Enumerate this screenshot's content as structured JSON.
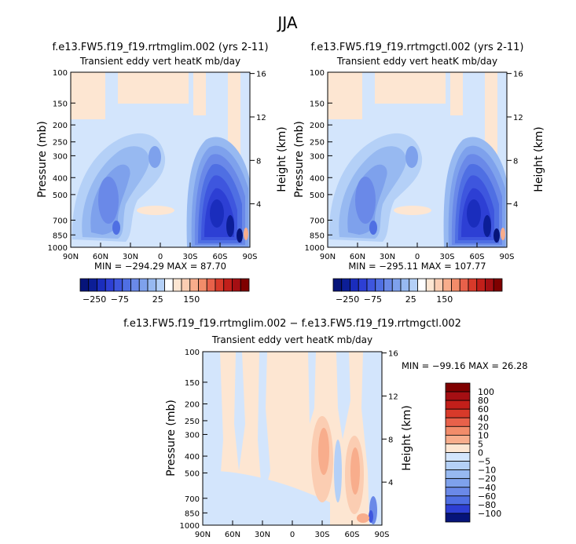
{
  "figure": {
    "title": "JJA"
  },
  "colors": {
    "bg": "#d3e5fc",
    "pos": [
      "#fde6d2",
      "#fbcdb2",
      "#f8ad8c",
      "#f28c6a",
      "#e8614a",
      "#d83a2a",
      "#c21f1a",
      "#a50f13",
      "#7f0000"
    ],
    "neg": [
      "#d3e5fc",
      "#b4d0f7",
      "#97b9f1",
      "#7ea1ec",
      "#6a89e8",
      "#4f6fe3",
      "#3e56de",
      "#2d3fd4",
      "#1a2dbd",
      "#0c1e97",
      "#06147a"
    ]
  },
  "chart_data": [
    {
      "type": "heatmap",
      "name": "panel-left",
      "title": "f.e13.FW5.f19_f19.rrtmglim.002 (yrs 2-11)",
      "subtitle": "Transient eddy vert heatK mb/day",
      "xlabel": "",
      "ylabel": "Pressure (mb)",
      "y2label": "Height (km)",
      "xticks": [
        "90N",
        "60N",
        "30N",
        "0",
        "30S",
        "60S",
        "90S"
      ],
      "yticks": [
        "100",
        "150",
        "200",
        "250",
        "300",
        "400",
        "500",
        "700",
        "850",
        "1000"
      ],
      "y2ticks": [
        "16",
        "12",
        "8",
        "4"
      ],
      "xlim": [
        90,
        -90
      ],
      "ylim": [
        100,
        1000
      ],
      "y_scale": "log",
      "stats": "MIN = −294.29   MAX =  87.70",
      "min": -294.29,
      "max": 87.7,
      "colorbar_labels": [
        "−250",
        "−75",
        "25",
        "150"
      ]
    },
    {
      "type": "heatmap",
      "name": "panel-right",
      "title": "f.e13.FW5.f19_f19.rrtmgctl.002 (yrs 2-11)",
      "subtitle": "Transient eddy vert heatK mb/day",
      "xlabel": "",
      "ylabel": "Pressure (mb)",
      "y2label": "Height (km)",
      "xticks": [
        "90N",
        "60N",
        "30N",
        "0",
        "30S",
        "60S",
        "90S"
      ],
      "yticks": [
        "100",
        "150",
        "200",
        "250",
        "300",
        "400",
        "500",
        "700",
        "850",
        "1000"
      ],
      "y2ticks": [
        "16",
        "12",
        "8",
        "4"
      ],
      "xlim": [
        90,
        -90
      ],
      "ylim": [
        100,
        1000
      ],
      "y_scale": "log",
      "stats": "MIN = −295.11   MAX = 107.77",
      "min": -295.11,
      "max": 107.77,
      "colorbar_labels": [
        "−250",
        "−75",
        "25",
        "150"
      ]
    },
    {
      "type": "heatmap",
      "name": "panel-diff",
      "title": "f.e13.FW5.f19_f19.rrtmglim.002 − f.e13.FW5.f19_f19.rrtmgctl.002",
      "subtitle": "Transient eddy vert heatK mb/day",
      "xlabel": "",
      "ylabel": "Pressure (mb)",
      "y2label": "Height (km)",
      "xticks": [
        "90N",
        "60N",
        "30N",
        "0",
        "30S",
        "60S",
        "90S"
      ],
      "yticks": [
        "100",
        "150",
        "200",
        "250",
        "300",
        "400",
        "500",
        "700",
        "850",
        "1000"
      ],
      "y2ticks": [
        "16",
        "12",
        "8",
        "4"
      ],
      "xlim": [
        90,
        -90
      ],
      "ylim": [
        100,
        1000
      ],
      "y_scale": "log",
      "stats": "MIN = −99.16   MAX =  26.28",
      "min": -99.16,
      "max": 26.28,
      "colorbar_levels": [
        "100",
        "80",
        "60",
        "40",
        "20",
        "10",
        "5",
        "0",
        "−5",
        "−10",
        "−20",
        "−40",
        "−60",
        "−80",
        "−100"
      ]
    }
  ]
}
